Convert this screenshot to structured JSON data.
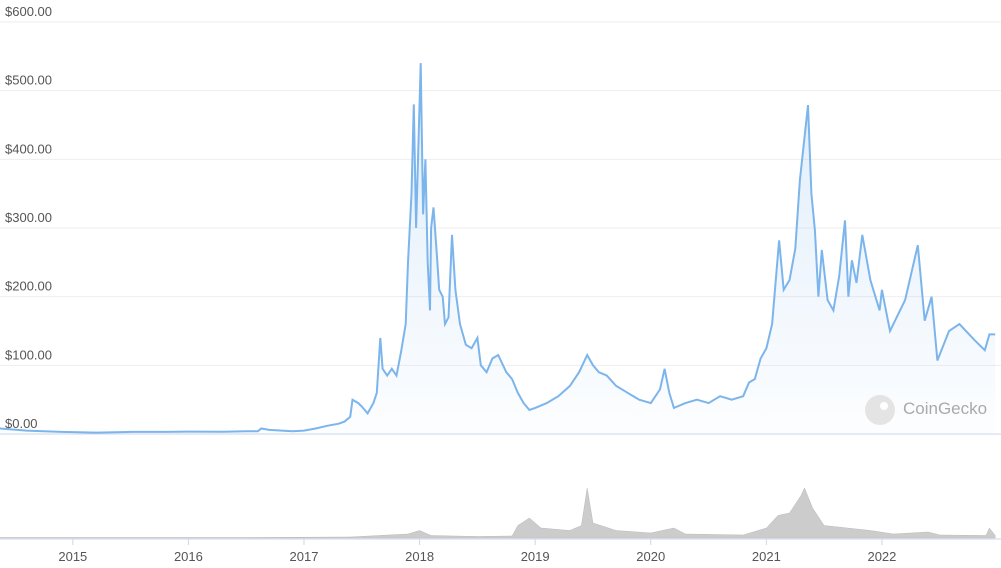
{
  "chart_data": [
    {
      "type": "line",
      "color": "#7cb5ec",
      "grid": true,
      "xlim": [
        2014.37,
        2023.03
      ],
      "xticks": [
        2015,
        2016,
        2017,
        2018,
        2019,
        2020,
        2021,
        2022
      ],
      "ylim": [
        0,
        600
      ],
      "yticks": [
        {
          "value": 0,
          "label": "$0.00"
        },
        {
          "value": 100,
          "label": "$100.00"
        },
        {
          "value": 200,
          "label": "$200.00"
        },
        {
          "value": 300,
          "label": "$300.00"
        },
        {
          "value": 400,
          "label": "$400.00"
        },
        {
          "value": 500,
          "label": "$500.00"
        },
        {
          "value": 600,
          "label": "$600.00"
        }
      ],
      "x": [
        2014.37,
        2014.6,
        2014.9,
        2015.2,
        2015.5,
        2015.8,
        2016.0,
        2016.3,
        2016.5,
        2016.6,
        2016.63,
        2016.7,
        2016.9,
        2017.0,
        2017.1,
        2017.2,
        2017.3,
        2017.35,
        2017.4,
        2017.42,
        2017.47,
        2017.5,
        2017.55,
        2017.6,
        2017.63,
        2017.66,
        2017.68,
        2017.72,
        2017.76,
        2017.8,
        2017.84,
        2017.88,
        2017.9,
        2017.93,
        2017.95,
        2017.97,
        2017.99,
        2018.01,
        2018.03,
        2018.05,
        2018.07,
        2018.09,
        2018.1,
        2018.12,
        2018.15,
        2018.17,
        2018.2,
        2018.22,
        2018.25,
        2018.28,
        2018.31,
        2018.35,
        2018.4,
        2018.45,
        2018.5,
        2018.53,
        2018.58,
        2018.63,
        2018.68,
        2018.75,
        2018.8,
        2018.85,
        2018.9,
        2018.95,
        2019.0,
        2019.1,
        2019.2,
        2019.3,
        2019.38,
        2019.45,
        2019.5,
        2019.55,
        2019.62,
        2019.7,
        2019.8,
        2019.9,
        2020.0,
        2020.08,
        2020.12,
        2020.16,
        2020.2,
        2020.3,
        2020.4,
        2020.5,
        2020.6,
        2020.7,
        2020.8,
        2020.85,
        2020.9,
        2020.95,
        2021.0,
        2021.05,
        2021.11,
        2021.15,
        2021.2,
        2021.25,
        2021.29,
        2021.36,
        2021.39,
        2021.42,
        2021.45,
        2021.48,
        2021.53,
        2021.58,
        2021.63,
        2021.68,
        2021.71,
        2021.74,
        2021.78,
        2021.83,
        2021.9,
        2021.98,
        2022.0,
        2022.07,
        2022.2,
        2022.31,
        2022.37,
        2022.43,
        2022.48,
        2022.58,
        2022.67,
        2022.8,
        2022.89,
        2022.93,
        2022.98
      ],
      "values": [
        8,
        5,
        3,
        2,
        3,
        3,
        3.5,
        3.2,
        4,
        4,
        8,
        6,
        4,
        5,
        8,
        12,
        15,
        18,
        25,
        50,
        45,
        40,
        30,
        45,
        60,
        140,
        95,
        85,
        95,
        85,
        120,
        160,
        250,
        350,
        480,
        300,
        420,
        540,
        320,
        400,
        250,
        180,
        300,
        330,
        260,
        210,
        200,
        160,
        170,
        290,
        210,
        160,
        130,
        125,
        140,
        100,
        90,
        110,
        115,
        90,
        80,
        60,
        45,
        35,
        38,
        45,
        55,
        70,
        90,
        115,
        100,
        90,
        85,
        70,
        60,
        50,
        45,
        65,
        95,
        60,
        38,
        45,
        50,
        45,
        55,
        50,
        55,
        75,
        80,
        110,
        125,
        160,
        282,
        210,
        224,
        270,
        370,
        479,
        350,
        297,
        200,
        268,
        195,
        180,
        230,
        311,
        200,
        253,
        220,
        290,
        224,
        180,
        210,
        150,
        195,
        275,
        165,
        200,
        107,
        150,
        160,
        137,
        122,
        145,
        145
      ]
    },
    {
      "type": "area",
      "color": "#cccccc",
      "ylim": [
        0,
        100
      ],
      "x": [
        2014.37,
        2016.5,
        2017.4,
        2017.9,
        2018.0,
        2018.1,
        2018.5,
        2018.8,
        2018.85,
        2018.95,
        2019.05,
        2019.3,
        2019.4,
        2019.45,
        2019.5,
        2019.7,
        2020.0,
        2020.2,
        2020.3,
        2020.8,
        2021.0,
        2021.1,
        2021.2,
        2021.3,
        2021.33,
        2021.4,
        2021.5,
        2021.7,
        2021.9,
        2022.1,
        2022.4,
        2022.5,
        2022.9,
        2022.93,
        2022.98
      ],
      "values": [
        1,
        1,
        2,
        8,
        15,
        5,
        3,
        4,
        25,
        40,
        20,
        15,
        25,
        100,
        30,
        15,
        10,
        20,
        8,
        6,
        20,
        45,
        50,
        85,
        100,
        60,
        25,
        20,
        15,
        8,
        12,
        6,
        5,
        20,
        5
      ]
    }
  ],
  "watermark": "CoinGecko"
}
